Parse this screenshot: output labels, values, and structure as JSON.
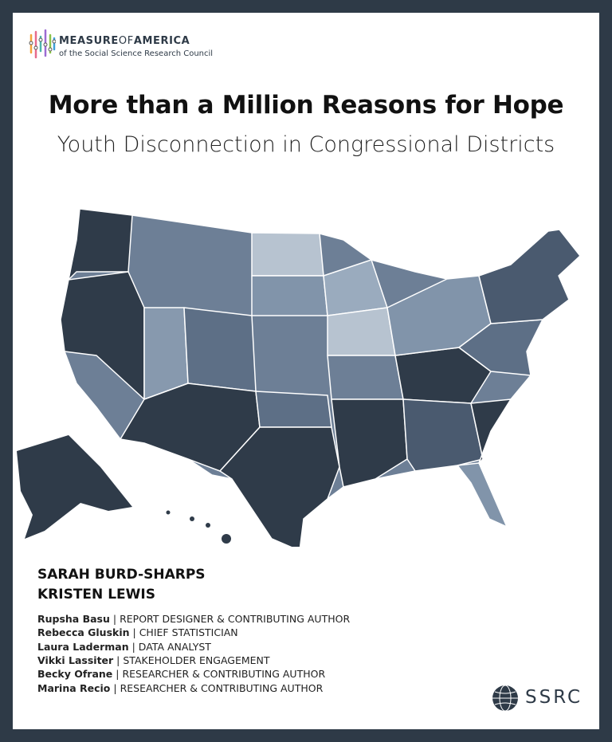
{
  "logo": {
    "measure": "MEASURE",
    "of": "OF",
    "america": "AMERICA",
    "tagline": "of the Social Science Research Council"
  },
  "header": {
    "title": "More than a Million Reasons for Hope",
    "subtitle": "Youth Disconnection in Congressional Districts"
  },
  "authors": [
    "SARAH BURD-SHARPS",
    "KRISTEN LEWIS"
  ],
  "separator": "|",
  "contributors": [
    {
      "name": "Rupsha Basu",
      "role": "REPORT DESIGNER & CONTRIBUTING AUTHOR"
    },
    {
      "name": "Rebecca Gluskin",
      "role": "CHIEF STATISTICIAN"
    },
    {
      "name": "Laura Laderman",
      "role": "DATA ANALYST"
    },
    {
      "name": "Vikki Lassiter",
      "role": "STAKEHOLDER ENGAGEMENT"
    },
    {
      "name": "Becky Ofrane",
      "role": "RESEARCHER & CONTRIBUTING AUTHOR"
    },
    {
      "name": "Marina Recio",
      "role": "RESEARCHER & CONTRIBUTING AUTHOR"
    }
  ],
  "publisher": "SSRC"
}
